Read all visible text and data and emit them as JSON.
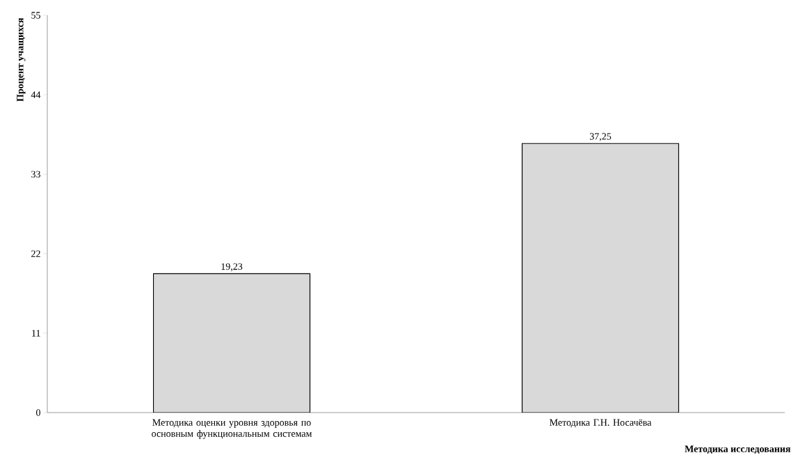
{
  "chart_data": {
    "type": "bar",
    "xlabel": "Методика исследования",
    "ylabel": "Процент учащихся",
    "categories": [
      "Методика оценки уровня здоровья по основным функциональным системам",
      "Методика Г.Н. Носачёва"
    ],
    "values": [
      19.23,
      37.25
    ],
    "value_labels": [
      "19,23",
      "37,25"
    ],
    "color": "#d9d9d9",
    "ylim": [
      0,
      55
    ],
    "yticks": [
      0,
      11,
      22,
      33,
      44,
      55
    ]
  }
}
